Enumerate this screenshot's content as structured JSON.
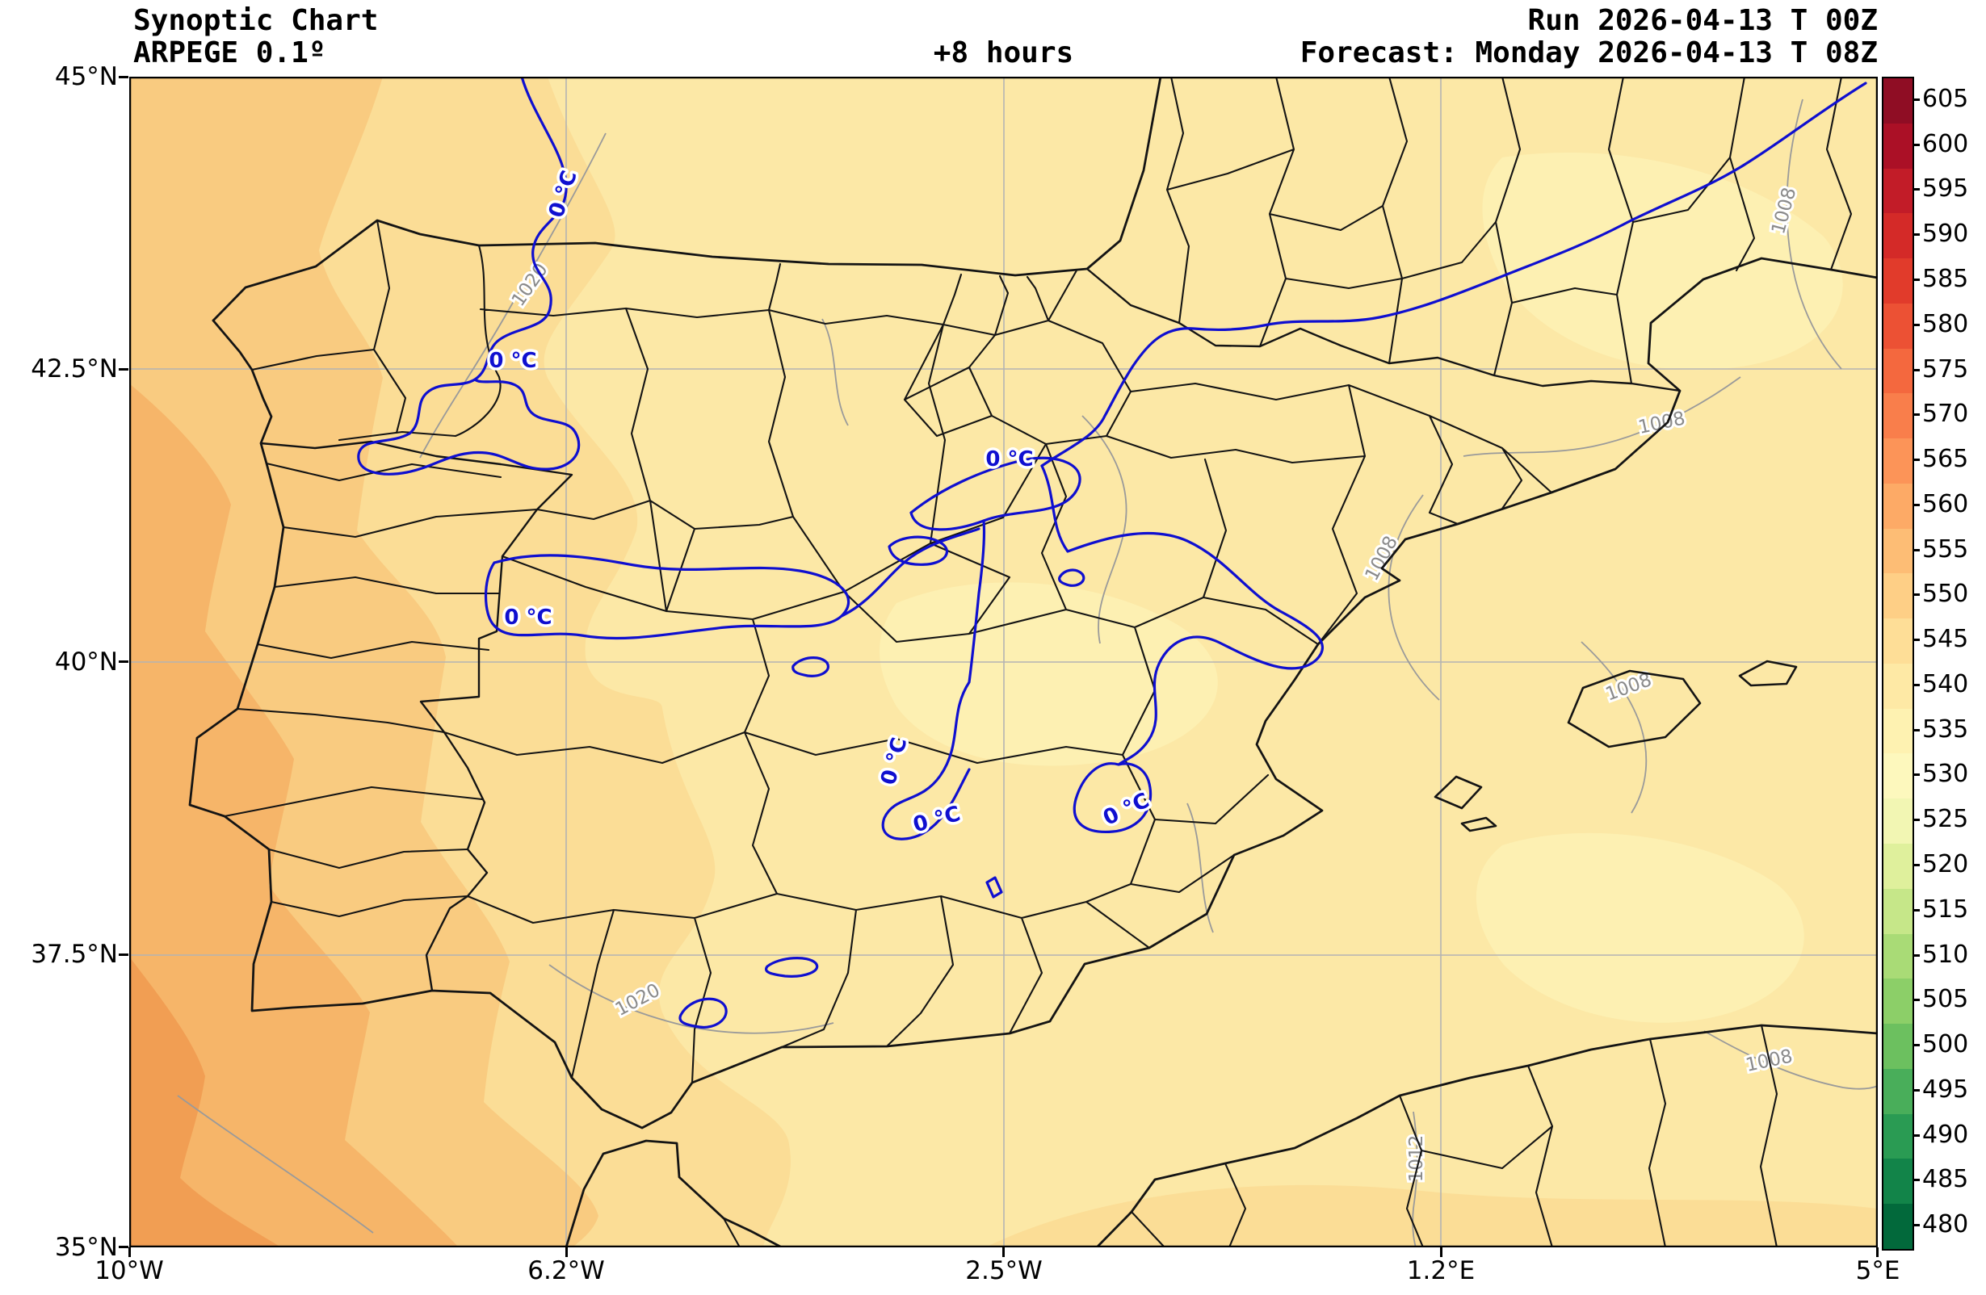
{
  "header": {
    "title": "Synoptic Chart",
    "model": "ARPEGE 0.1º",
    "lead_time": "+8 hours",
    "run_label": "Run 2026-04-13 T 00Z",
    "forecast_label": "Forecast: Monday 2026-04-13 T 08Z"
  },
  "chart_data": {
    "type": "heatmap",
    "title": "Synoptic Chart ARPEGE 0.1º +8 hours",
    "region": "Iberian Peninsula",
    "extent": {
      "lon_min_label": "10°W",
      "lon_max_label": "5°E",
      "lat_min_label": "35°N",
      "lat_max_label": "45°N"
    },
    "x_tick_labels": [
      "10°W",
      "6.2°W",
      "2.5°W",
      "1.2°E",
      "5°E"
    ],
    "y_tick_labels": [
      "45°N",
      "42.5°N",
      "40°N",
      "37.5°N",
      "35°N"
    ],
    "grid": true,
    "colorbar": {
      "orientation": "vertical",
      "position": "right",
      "tick_values": [
        605,
        600,
        595,
        590,
        585,
        580,
        575,
        570,
        565,
        560,
        555,
        550,
        545,
        540,
        535,
        530,
        525,
        520,
        515,
        510,
        505,
        500,
        495,
        490,
        485,
        480
      ],
      "segment_colors_top_to_bottom": [
        "#8f0d24",
        "#ab1026",
        "#c21c28",
        "#d42a28",
        "#e13b2b",
        "#ec5134",
        "#f4683e",
        "#f97e4b",
        "#fc9458",
        "#fdaa66",
        "#fdbd75",
        "#fecf86",
        "#fede97",
        "#fee9a5",
        "#fef2b1",
        "#fdf8bd",
        "#f2f6b3",
        "#dff09c",
        "#c6e789",
        "#a9db76",
        "#8ccf68",
        "#6cc05f",
        "#49ae5a",
        "#2a9b53",
        "#128449",
        "#02693b"
      ]
    },
    "overlays": {
      "zero_degree_isotherm": {
        "color": "#0f0fd0",
        "label": "0 °C",
        "label_count": 7
      },
      "isobars": {
        "color": "#8a8a8a",
        "labels": [
          "1020",
          "1008",
          "1008",
          "1008",
          "1008",
          "1020",
          "1008",
          "1012"
        ]
      },
      "borders": "coastlines with national and provincial boundaries drawn in black"
    }
  }
}
